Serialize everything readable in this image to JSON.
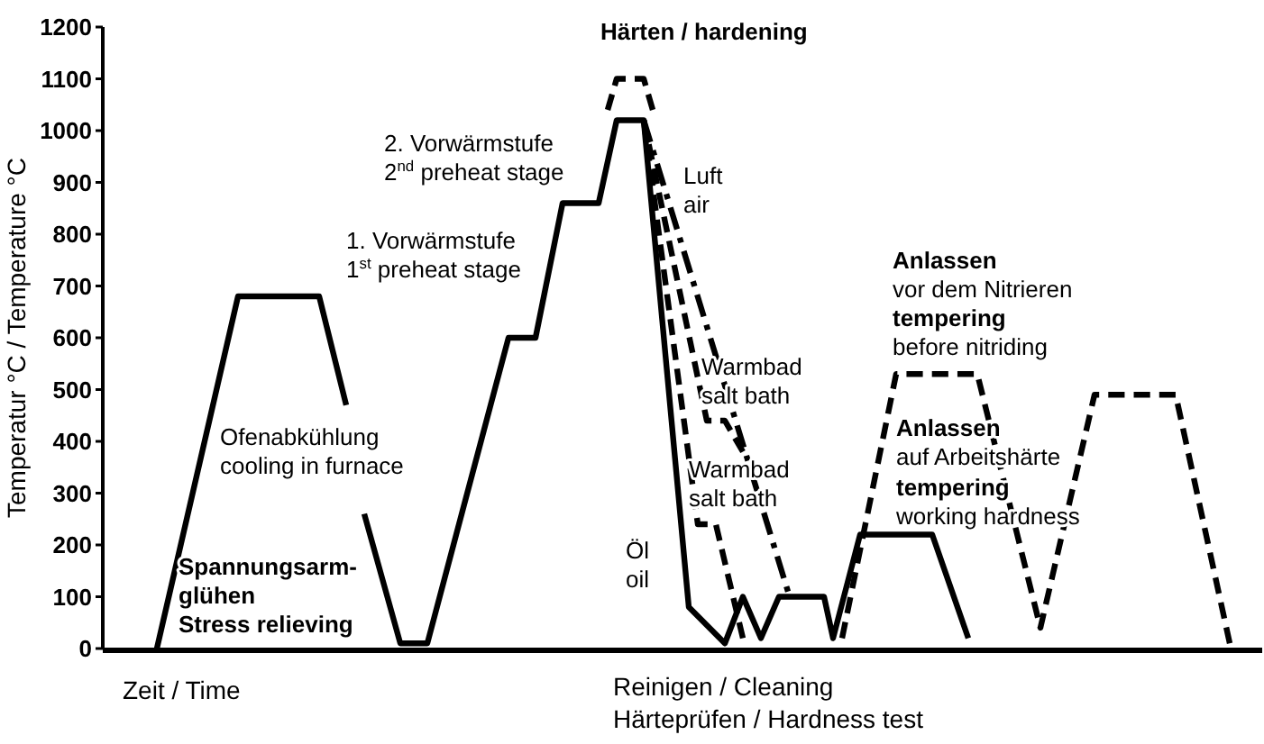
{
  "chart_data": {
    "type": "line",
    "ylabel": "Temperatur °C / Temperature °C",
    "xlabel": "Zeit / Time",
    "categories": [
      null,
      null,
      null,
      null,
      null,
      null,
      null,
      null,
      null,
      null,
      null,
      null,
      null,
      null,
      null,
      null,
      null,
      null,
      null,
      null,
      null,
      null,
      null,
      null,
      null,
      null,
      null,
      null,
      null,
      null,
      null,
      null,
      null,
      null,
      null,
      null,
      null,
      null,
      null,
      null,
      null,
      null,
      null,
      null,
      null,
      null,
      null,
      null,
      null,
      null,
      null,
      null,
      null,
      null,
      null,
      null,
      null,
      null,
      null,
      null,
      null,
      null,
      null,
      null,
      null,
      null,
      null,
      null,
      null,
      null,
      null,
      null,
      null,
      null,
      null,
      null,
      null,
      null,
      null,
      null,
      null,
      null,
      null,
      null,
      null,
      null,
      null,
      null,
      null,
      null,
      null,
      null,
      null,
      null,
      null,
      null,
      null,
      null,
      null,
      null,
      null,
      null,
      null,
      null,
      null,
      null,
      null,
      null,
      null,
      null,
      null,
      null,
      null,
      null,
      null,
      null,
      null,
      null,
      null,
      null,
      null,
      null,
      null,
      null,
      null,
      null,
      null,
      null,
      null
    ],
    "ylim": [
      0,
      1200
    ],
    "yticks": [
      0,
      100,
      200,
      300,
      400,
      500,
      600,
      700,
      800,
      900,
      1000,
      1100,
      1200
    ],
    "tick_labels": "y",
    "series": [
      {
        "color": "#000000",
        "line_style": "solid",
        "values": [
          null,
          null,
          null,
          null,
          null,
          null,
          0,
          null,
          null,
          null,
          null,
          null,
          null,
          null,
          null,
          680,
          null,
          null,
          null,
          null,
          null,
          null,
          null,
          null,
          680,
          null,
          null,
          470,
          null,
          null,
          null,
          null,
          null,
          null,
          null,
          null,
          null,
          null,
          null,
          null,
          null,
          null,
          null,
          null,
          null,
          null,
          null,
          null,
          null,
          null,
          null,
          null,
          null,
          null,
          null,
          null,
          null,
          null,
          null,
          null,
          null,
          null,
          null,
          null,
          null,
          null,
          null,
          null,
          null,
          null,
          null,
          null,
          null,
          null,
          null,
          null,
          null,
          null,
          null,
          null,
          null,
          null,
          null,
          null,
          null,
          null,
          null,
          null,
          null,
          null,
          null,
          null,
          null,
          null,
          null,
          null,
          null,
          null,
          null,
          null,
          null,
          null,
          null,
          null,
          null,
          null,
          null,
          null,
          null,
          null,
          null,
          null,
          null,
          null,
          null,
          null,
          null,
          null,
          null,
          null,
          null,
          null,
          null,
          null,
          null,
          null,
          null,
          null,
          null
        ]
      },
      {
        "color": "#000000",
        "line_style": "solid",
        "values": [
          null,
          null,
          null,
          null,
          null,
          null,
          null,
          null,
          null,
          null,
          null,
          null,
          null,
          null,
          null,
          null,
          null,
          null,
          null,
          null,
          null,
          null,
          null,
          null,
          null,
          null,
          null,
          null,
          null,
          260,
          null,
          null,
          null,
          10,
          null,
          null,
          10,
          null,
          null,
          null,
          null,
          null,
          null,
          null,
          null,
          600,
          null,
          null,
          600,
          null,
          null,
          860,
          null,
          null,
          null,
          860,
          null,
          1020,
          null,
          null,
          1020,
          null,
          null,
          null,
          null,
          80,
          null,
          null,
          null,
          10,
          null,
          100,
          null,
          20,
          null,
          100,
          null,
          null,
          null,
          null,
          100,
          20,
          null,
          null,
          220,
          null,
          null,
          null,
          null,
          null,
          null,
          null,
          220,
          null,
          null,
          null,
          20,
          null,
          null,
          null,
          null,
          null,
          null,
          null,
          null,
          null,
          null,
          null,
          null,
          null,
          null,
          null,
          null,
          null,
          null,
          null,
          null,
          null,
          null,
          null,
          null,
          null,
          null,
          null,
          null,
          null,
          null,
          null,
          null
        ]
      },
      {
        "color": "#000000",
        "line_style": "dashed",
        "values": [
          null,
          null,
          null,
          null,
          null,
          null,
          null,
          null,
          null,
          null,
          null,
          null,
          null,
          null,
          null,
          null,
          null,
          null,
          null,
          null,
          null,
          null,
          null,
          null,
          null,
          null,
          null,
          null,
          null,
          null,
          null,
          null,
          null,
          null,
          null,
          null,
          null,
          null,
          null,
          null,
          null,
          null,
          null,
          null,
          null,
          null,
          null,
          null,
          null,
          null,
          null,
          null,
          null,
          null,
          null,
          null,
          1040,
          1100,
          null,
          null,
          1100,
          1040,
          null,
          null,
          null,
          null,
          null,
          null,
          null,
          null,
          null,
          null,
          null,
          null,
          null,
          null,
          null,
          null,
          null,
          null,
          null,
          null,
          null,
          null,
          null,
          null,
          null,
          null,
          null,
          null,
          null,
          null,
          null,
          null,
          null,
          null,
          null,
          null,
          null,
          null,
          null,
          null,
          null,
          null,
          null,
          null,
          null,
          null,
          null,
          null,
          null,
          null,
          null,
          null,
          null,
          null,
          null,
          null,
          null,
          null,
          null,
          null,
          null,
          null,
          null,
          null,
          null,
          null,
          null
        ]
      },
      {
        "color": "#000000",
        "line_style": "dashdot",
        "values": [
          null,
          null,
          null,
          null,
          null,
          null,
          null,
          null,
          null,
          null,
          null,
          null,
          null,
          null,
          null,
          null,
          null,
          null,
          null,
          null,
          null,
          null,
          null,
          null,
          null,
          null,
          null,
          null,
          null,
          null,
          null,
          null,
          null,
          null,
          null,
          null,
          null,
          null,
          null,
          null,
          null,
          null,
          null,
          null,
          null,
          null,
          null,
          null,
          null,
          null,
          null,
          null,
          null,
          null,
          null,
          null,
          null,
          null,
          null,
          null,
          1020,
          null,
          null,
          null,
          null,
          null,
          null,
          null,
          null,
          null,
          null,
          null,
          null,
          null,
          null,
          null,
          110,
          null,
          null,
          null,
          null,
          null,
          null,
          null,
          null,
          null,
          null,
          null,
          null,
          null,
          null,
          null,
          null,
          null,
          null,
          null,
          null,
          null,
          null,
          null,
          null,
          null,
          null,
          null,
          null,
          null,
          null,
          null,
          null,
          null,
          null,
          null,
          null,
          null,
          null,
          null,
          null,
          null,
          null,
          null,
          null,
          null,
          null,
          null,
          null,
          null,
          null,
          null,
          null
        ]
      },
      {
        "color": "#000000",
        "line_style": "dashed",
        "values": [
          null,
          null,
          null,
          null,
          null,
          null,
          null,
          null,
          null,
          null,
          null,
          null,
          null,
          null,
          null,
          null,
          null,
          null,
          null,
          null,
          null,
          null,
          null,
          null,
          null,
          null,
          null,
          null,
          null,
          null,
          null,
          null,
          null,
          null,
          null,
          null,
          null,
          null,
          null,
          null,
          null,
          null,
          null,
          null,
          null,
          null,
          null,
          null,
          null,
          null,
          null,
          null,
          null,
          null,
          null,
          null,
          null,
          null,
          null,
          null,
          1020,
          null,
          null,
          null,
          null,
          null,
          null,
          440,
          null,
          440,
          null,
          380,
          null,
          null,
          null,
          null,
          null,
          null,
          null,
          null,
          null,
          null,
          null,
          null,
          null,
          null,
          null,
          null,
          null,
          null,
          null,
          null,
          null,
          null,
          null,
          null,
          null,
          null,
          null,
          null,
          null,
          null,
          null,
          null,
          null,
          null,
          null,
          null,
          null,
          null,
          null,
          null,
          null,
          null,
          null,
          null,
          null,
          null,
          null,
          null,
          null,
          null,
          null,
          null,
          null,
          null,
          null,
          null,
          null
        ]
      },
      {
        "color": "#000000",
        "line_style": "dashed",
        "values": [
          null,
          null,
          null,
          null,
          null,
          null,
          null,
          null,
          null,
          null,
          null,
          null,
          null,
          null,
          null,
          null,
          null,
          null,
          null,
          null,
          null,
          null,
          null,
          null,
          null,
          null,
          null,
          null,
          null,
          null,
          null,
          null,
          null,
          null,
          null,
          null,
          null,
          null,
          null,
          null,
          null,
          null,
          null,
          null,
          null,
          null,
          null,
          null,
          null,
          null,
          null,
          null,
          null,
          null,
          null,
          null,
          null,
          null,
          null,
          null,
          1020,
          null,
          null,
          null,
          null,
          null,
          240,
          null,
          240,
          null,
          null,
          20,
          null,
          null,
          null,
          null,
          null,
          null,
          null,
          null,
          null,
          null,
          null,
          null,
          null,
          null,
          null,
          null,
          null,
          null,
          null,
          null,
          null,
          null,
          null,
          null,
          null,
          null,
          null,
          null,
          null,
          null,
          null,
          null,
          null,
          null,
          null,
          null,
          null,
          null,
          null,
          null,
          null,
          null,
          null,
          null,
          null,
          null,
          null,
          null,
          null,
          null,
          null,
          null,
          null,
          null,
          null,
          null,
          null
        ]
      },
      {
        "color": "#000000",
        "line_style": "dashed",
        "values": [
          null,
          null,
          null,
          null,
          null,
          null,
          null,
          null,
          null,
          null,
          null,
          null,
          null,
          null,
          null,
          null,
          null,
          null,
          null,
          null,
          null,
          null,
          null,
          null,
          null,
          null,
          null,
          null,
          null,
          null,
          null,
          null,
          null,
          null,
          null,
          null,
          null,
          null,
          null,
          null,
          null,
          null,
          null,
          null,
          null,
          null,
          null,
          null,
          null,
          null,
          null,
          null,
          null,
          null,
          null,
          null,
          null,
          null,
          null,
          null,
          null,
          null,
          null,
          null,
          null,
          null,
          null,
          null,
          null,
          null,
          null,
          null,
          null,
          null,
          null,
          null,
          null,
          null,
          null,
          null,
          null,
          null,
          20,
          null,
          null,
          null,
          null,
          null,
          530,
          null,
          null,
          null,
          null,
          null,
          null,
          null,
          null,
          530,
          null,
          null,
          null,
          null,
          null,
          null,
          40,
          null,
          null,
          null,
          null,
          null,
          490,
          null,
          null,
          null,
          null,
          null,
          null,
          null,
          null,
          490,
          null,
          null,
          null,
          null,
          null,
          10,
          null,
          null,
          null
        ]
      }
    ],
    "annotations": [
      "Härten / hardening",
      "Spannungsarm-",
      "glühen",
      "Stress relieving",
      "Anlassen",
      "tempering",
      "Anlassen",
      "tempering",
      "2. Vorwärmstufe",
      "2$^{nd}$ preheat stage",
      "1. Vorwärmstufe",
      "1$^{st}$ preheat stage",
      "Ofenabkühlung",
      "cooling in furnace",
      "Luft",
      "air",
      "Warmbad",
      "salt bath",
      "Warmbad",
      "salt bath",
      "Öl",
      "oil",
      "vor dem Nitrieren",
      "before nitriding",
      "auf Arbeitshärte",
      "working hardness",
      "Reinigen / Cleaning",
      "Härteprüfen / Hardness test"
    ]
  }
}
